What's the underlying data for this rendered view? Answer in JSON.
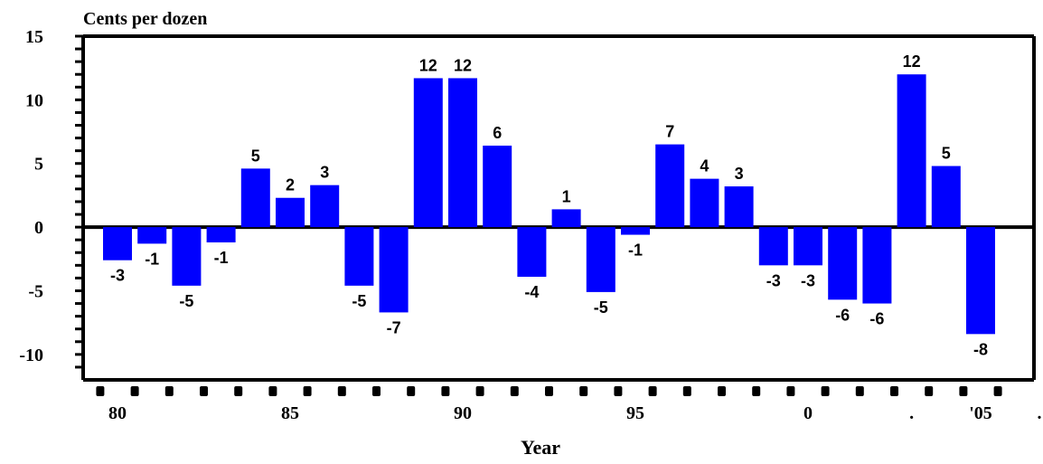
{
  "chart_data": {
    "type": "bar",
    "ylabel": "Cents per dozen",
    "xlabel": "Year",
    "ylim": [
      -12,
      15
    ],
    "yticks": [
      {
        "value": 15,
        "label": "15"
      },
      {
        "value": 10,
        "label": "10"
      },
      {
        "value": 5,
        "label": "5"
      },
      {
        "value": 0,
        "label": "0"
      },
      {
        "value": -5,
        "label": "-5"
      },
      {
        "value": -10,
        "label": "-10"
      }
    ],
    "xticks": [
      {
        "index": 0,
        "label": "80"
      },
      {
        "index": 5,
        "label": "85"
      },
      {
        "index": 10,
        "label": "90"
      },
      {
        "index": 15,
        "label": "95"
      },
      {
        "index": 20,
        "label": "0"
      },
      {
        "index": 23,
        "label": "."
      },
      {
        "index": 25,
        "label": "'05"
      },
      {
        "index": 26.7,
        "label": "."
      }
    ],
    "values": [
      -2.6,
      -1.3,
      -4.6,
      -1.2,
      4.6,
      2.3,
      3.3,
      -4.6,
      -6.7,
      11.7,
      11.7,
      6.4,
      -3.9,
      1.4,
      -5.1,
      -0.6,
      6.5,
      3.8,
      3.2,
      -3.0,
      -3.0,
      -5.7,
      -6.0,
      12.0,
      4.8,
      -8.4
    ],
    "labels": [
      "-3",
      "-1",
      "-5",
      "-1",
      "5",
      "2",
      "3",
      "-5",
      "-7",
      "12",
      "12",
      "6",
      "-4",
      "1",
      "-5",
      "-1",
      "7",
      "4",
      "3",
      "-3",
      "-3",
      "-6",
      "-6",
      "12",
      "5",
      "-8"
    ],
    "bar_color": "#0000ff",
    "grid": false,
    "legend": "none"
  }
}
